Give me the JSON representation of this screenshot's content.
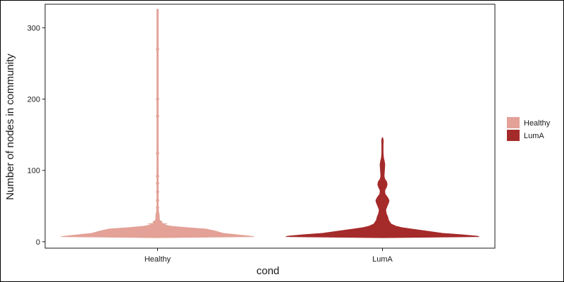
{
  "chart_data": {
    "type": "violin",
    "xlabel": "cond",
    "ylabel": "Number of nodes in community",
    "ylim": [
      -9,
      333
    ],
    "yticks": [
      0,
      100,
      200,
      300
    ],
    "categories": [
      "Healthy",
      "LumA"
    ],
    "legend": {
      "position": "right",
      "entries": [
        "Healthy",
        "LumA"
      ]
    },
    "grid": false,
    "series": [
      {
        "name": "Healthy",
        "color": "#E3A197",
        "max": 326,
        "density": [
          [
            7,
            1.0
          ],
          [
            8,
            0.96
          ],
          [
            10,
            0.82
          ],
          [
            12,
            0.68
          ],
          [
            15,
            0.6
          ],
          [
            18,
            0.5
          ],
          [
            20,
            0.3
          ],
          [
            22,
            0.14
          ],
          [
            24,
            0.06
          ],
          [
            25,
            0.1
          ],
          [
            26,
            0.04
          ],
          [
            28,
            0.05
          ],
          [
            30,
            0.022
          ],
          [
            34,
            0.02
          ],
          [
            38,
            0.018
          ],
          [
            42,
            0.012
          ],
          [
            50,
            0.008
          ],
          [
            326,
            0.008
          ]
        ],
        "outliers": [
          270,
          200,
          176,
          124,
          92,
          82,
          70,
          58,
          48,
          40
        ]
      },
      {
        "name": "LumA",
        "color": "#A52A2A",
        "max": 146,
        "density": [
          [
            7,
            1.0
          ],
          [
            8,
            0.98
          ],
          [
            10,
            0.82
          ],
          [
            12,
            0.62
          ],
          [
            15,
            0.46
          ],
          [
            18,
            0.3
          ],
          [
            20,
            0.2
          ],
          [
            22,
            0.14
          ],
          [
            25,
            0.09
          ],
          [
            30,
            0.065
          ],
          [
            35,
            0.055
          ],
          [
            40,
            0.04
          ],
          [
            45,
            0.035
          ],
          [
            50,
            0.05
          ],
          [
            55,
            0.065
          ],
          [
            58,
            0.07
          ],
          [
            62,
            0.055
          ],
          [
            67,
            0.028
          ],
          [
            72,
            0.025
          ],
          [
            76,
            0.04
          ],
          [
            80,
            0.05
          ],
          [
            84,
            0.045
          ],
          [
            88,
            0.025
          ],
          [
            92,
            0.018
          ],
          [
            100,
            0.022
          ],
          [
            108,
            0.026
          ],
          [
            112,
            0.022
          ],
          [
            118,
            0.012
          ],
          [
            125,
            0.008
          ],
          [
            135,
            0.008
          ],
          [
            142,
            0.01
          ],
          [
            146,
            0.004
          ]
        ],
        "outliers": []
      }
    ]
  }
}
